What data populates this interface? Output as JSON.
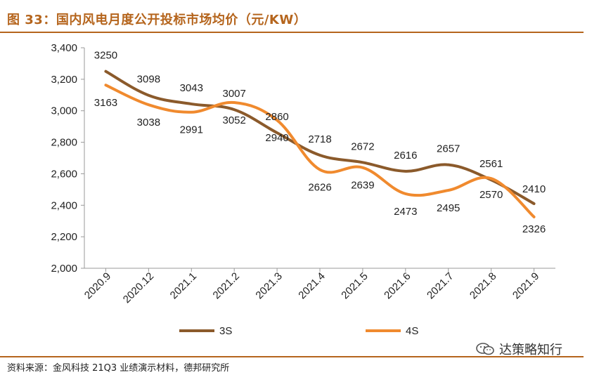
{
  "header": {
    "title": "图 33：国内风电月度公开投标市场均价（元/KW）"
  },
  "footer": {
    "source": "资料来源：金风科技 21Q3 业绩演示材料，德邦研究所"
  },
  "watermark": {
    "text": "达策略知行",
    "icon": "wechat-icon"
  },
  "colors": {
    "accent": "#b5651d",
    "series_3s": "#8b5a2b",
    "series_4s": "#f08a2e"
  },
  "chart_data": {
    "type": "line",
    "title": "国内风电月度公开投标市场均价（元/KW）",
    "categories": [
      "2020.9",
      "2020.12",
      "2021.1",
      "2021.2",
      "2021.3",
      "2021.4",
      "2021.5",
      "2021.6",
      "2021.7",
      "2021.8",
      "2021.9"
    ],
    "series": [
      {
        "name": "3S",
        "values": [
          3250,
          3098,
          3043,
          3007,
          2860,
          2718,
          2672,
          2616,
          2657,
          2561,
          2410
        ]
      },
      {
        "name": "4S",
        "values": [
          3163,
          3038,
          2991,
          3052,
          2940,
          2626,
          2639,
          2473,
          2495,
          2570,
          2326
        ]
      }
    ],
    "y_ticks": [
      "3,400",
      "3,200",
      "3,000",
      "2,800",
      "2,600",
      "2,400",
      "2,200",
      "2,000"
    ],
    "ylim": [
      2000,
      3400
    ],
    "xlabel": "",
    "ylabel": "",
    "legend": "bottom",
    "grid": false
  }
}
